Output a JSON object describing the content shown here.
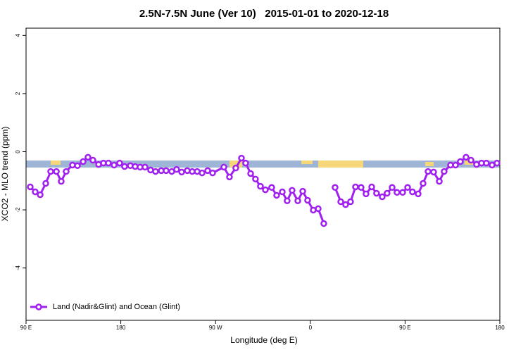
{
  "chart_data": {
    "type": "line",
    "title": "2.5N-7.5N June (Ver 10)   2015-01-01 to 2020-12-18",
    "x_label": "Longitude (deg E)",
    "y_label": "XCO2 - MLO trend (ppm)",
    "xlim": [
      90,
      540
    ],
    "ylim": [
      -5.8,
      4.25
    ],
    "xticks": [
      {
        "value": 90,
        "label": "90 E"
      },
      {
        "value": 180,
        "label": "180"
      },
      {
        "value": 270,
        "label": "90 W"
      },
      {
        "value": 360,
        "label": "0"
      },
      {
        "value": 450,
        "label": "90 E"
      },
      {
        "value": 540,
        "label": "180"
      }
    ],
    "yticks": [
      -4,
      -2,
      0,
      2,
      4
    ],
    "legend": "bottom-left",
    "series": [
      {
        "name": "Land (Nadir&Glint) and Ocean (Glint)",
        "color": "#a020f0",
        "x": [
          94,
          98.7,
          103.4,
          108.7,
          113.4,
          118.8,
          123.4,
          128.1,
          134.1,
          138.8,
          144.2,
          148.8,
          153.5,
          158.9,
          163.5,
          168.2,
          173.6,
          178.9,
          183.6,
          189,
          193.6,
          198.3,
          203,
          208.3,
          213,
          218.4,
          223,
          228.4,
          233,
          237.8,
          243.1,
          247.8,
          252.5,
          257.2,
          262.5,
          267.2,
          277.9,
          283.2,
          289.2,
          294.6,
          298.6,
          303.3,
          307.9,
          312.6,
          317.3,
          323.3,
          328,
          333.4,
          338,
          342.7,
          348.1,
          352.8,
          357.4,
          362.8,
          367.5,
          372.8,
          378,
          383.5,
          388.9,
          393.5,
          398.2,
          402.9,
          408.2,
          412.9,
          418.3,
          422.9,
          428.3,
          432.9,
          437.7,
          442.3,
          447.7,
          452.4,
          457,
          462.4,
          467.1,
          471.8,
          477.1,
          482.5,
          487.1,
          493.2,
          497.9,
          502.5,
          507.9,
          512.6,
          517.9,
          522.6,
          527.2,
          532.6,
          537.3
        ],
        "values": [
          -1.21,
          -1.38,
          -1.48,
          -1.09,
          -0.68,
          -0.68,
          -1.02,
          -0.68,
          -0.46,
          -0.48,
          -0.34,
          -0.19,
          -0.29,
          -0.44,
          -0.39,
          -0.39,
          -0.46,
          -0.39,
          -0.51,
          -0.48,
          -0.51,
          -0.53,
          -0.53,
          -0.63,
          -0.68,
          -0.65,
          -0.65,
          -0.68,
          -0.61,
          -0.7,
          -0.65,
          -0.68,
          -0.68,
          -0.73,
          -0.65,
          -0.73,
          -0.53,
          -0.87,
          -0.56,
          -0.22,
          -0.39,
          -0.75,
          -0.94,
          -1.19,
          -1.31,
          -1.23,
          -1.5,
          -1.38,
          -1.69,
          -1.33,
          -1.69,
          -1.36,
          -1.67,
          -2.01,
          -1.96,
          -2.47,
          null,
          -1.23,
          -1.72,
          -1.82,
          -1.72,
          -1.21,
          -1.23,
          -1.45,
          -1.21,
          -1.43,
          -1.55,
          -1.43,
          -1.23,
          -1.4,
          -1.4,
          -1.23,
          -1.38,
          -1.45,
          -1.09,
          -0.68,
          -0.7,
          -1.02,
          -0.68,
          -0.46,
          -0.46,
          -0.34,
          -0.19,
          -0.29,
          -0.44,
          -0.39,
          -0.39,
          -0.46,
          -0.39
        ]
      }
    ]
  }
}
